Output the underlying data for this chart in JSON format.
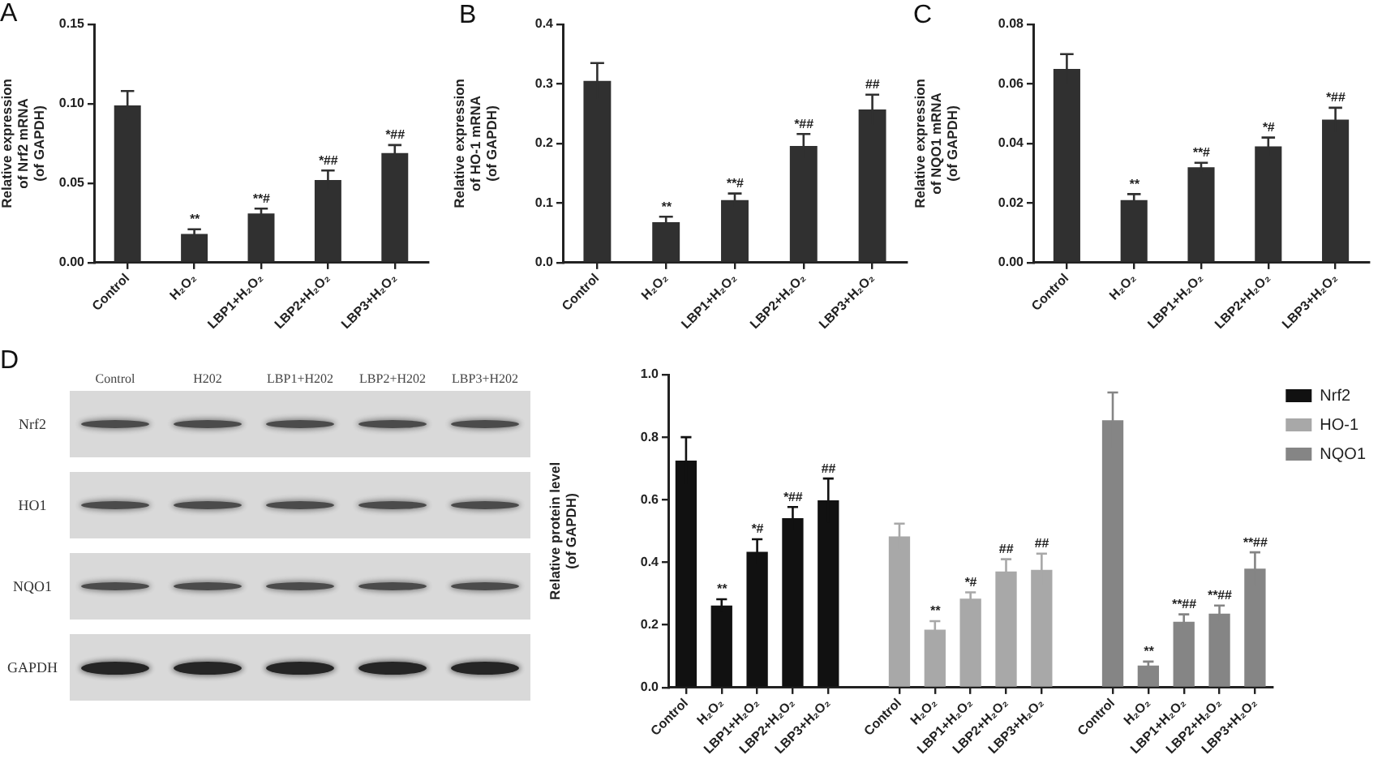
{
  "chart_data": [
    {
      "type": "bar",
      "title": "A",
      "ylabel": "Relative expression\nof Nrf2 mRNA\n(of GAPDH)",
      "categories": [
        "Control",
        "H₂O₂",
        "LBP1+H₂O₂",
        "LBP2+H₂O₂",
        "LBP3+H₂O₂"
      ],
      "values": [
        0.099,
        0.018,
        0.031,
        0.052,
        0.069
      ],
      "errors": [
        0.009,
        0.003,
        0.003,
        0.006,
        0.005
      ],
      "value_labels": [
        null,
        "**",
        "**#",
        "*##",
        "*##"
      ],
      "color": "#303030",
      "ylim": [
        0,
        0.15
      ],
      "yticks": [
        {
          "value": 0,
          "label": "0.00"
        },
        0.05,
        {
          "value": 0.1,
          "label": "0.10"
        },
        0.15
      ]
    },
    {
      "type": "bar",
      "title": "B",
      "ylabel": "Relative expression\nof HO-1 mRNA\n(of GAPDH)",
      "categories": [
        "Control",
        "H₂O₂",
        "LBP1+H₂O₂",
        "LBP2+H₂O₂",
        "LBP3+H₂O₂"
      ],
      "values": [
        0.305,
        0.068,
        0.105,
        0.196,
        0.257
      ],
      "errors": [
        0.03,
        0.009,
        0.011,
        0.02,
        0.025
      ],
      "value_labels": [
        null,
        "**",
        "**#",
        "*##",
        "##"
      ],
      "color": "#303030",
      "ylim": [
        0,
        0.4
      ],
      "yticks": [
        {
          "value": 0,
          "label": "0.0"
        },
        0.1,
        0.2,
        0.3,
        0.4
      ]
    },
    {
      "type": "bar",
      "title": "C",
      "ylabel": "Relative expression\nof NQO1 mRNA\n(of GAPDH)",
      "categories": [
        "Control",
        "H₂O₂",
        "LBP1+H₂O₂",
        "LBP2+H₂O₂",
        "LBP3+H₂O₂"
      ],
      "values": [
        0.065,
        0.021,
        0.032,
        0.039,
        0.048
      ],
      "errors": [
        0.005,
        0.002,
        0.0015,
        0.003,
        0.004
      ],
      "value_labels": [
        null,
        "**",
        "**#",
        "*#",
        "*##"
      ],
      "color": "#303030",
      "ylim": [
        0,
        0.08
      ],
      "yticks": [
        {
          "value": 0,
          "label": "0.00"
        },
        0.02,
        0.04,
        0.06,
        0.08
      ]
    },
    {
      "type": "other",
      "title": "D",
      "categories": [
        "Control",
        "H202",
        "LBP1+H202",
        "LBP2+H202",
        "LBP3+H202"
      ],
      "y_categories": [
        "Nrf2",
        "HO1",
        "NQO1",
        "GAPDH"
      ]
    },
    {
      "type": "bar",
      "ylabel": "Relative protein level\n(of GAPDH)",
      "categories": [
        "Control",
        "H₂O₂",
        "LBP1+H₂O₂",
        "LBP2+H₂O₂",
        "LBP3+H₂O₂",
        null,
        "Control",
        "H₂O₂",
        "LBP1+H₂O₂",
        "LBP2+H₂O₂",
        "LBP3+H₂O₂",
        null,
        "Control",
        "H₂O₂",
        "LBP1+H₂O₂",
        "LBP2+H₂O₂",
        "LBP3+H₂O₂"
      ],
      "series": [
        {
          "name": "Nrf2",
          "color": "#111111",
          "values": [
            0.725,
            0.262,
            0.434,
            0.541,
            0.598,
            null,
            null,
            null,
            null,
            null,
            null,
            null,
            null,
            null,
            null,
            null,
            null
          ],
          "errors": [
            0.075,
            0.02,
            0.04,
            0.036,
            0.07,
            null,
            null,
            null,
            null,
            null,
            null,
            null,
            null,
            null,
            null,
            null,
            null
          ],
          "value_labels": [
            null,
            "**",
            "*#",
            "*##",
            "##",
            null,
            null,
            null,
            null,
            null,
            null,
            null,
            null,
            null,
            null,
            null,
            null
          ]
        },
        {
          "name": "HO-1",
          "color": "#a8a8a8",
          "values": [
            null,
            null,
            null,
            null,
            null,
            null,
            0.483,
            0.185,
            0.284,
            0.371,
            0.376,
            null,
            null,
            null,
            null,
            null,
            null
          ],
          "errors": [
            null,
            null,
            null,
            null,
            null,
            null,
            0.041,
            0.027,
            0.02,
            0.039,
            0.052,
            null,
            null,
            null,
            null,
            null,
            null
          ],
          "value_labels": [
            null,
            null,
            null,
            null,
            null,
            null,
            null,
            "**",
            "*#",
            "##",
            "##",
            null,
            null,
            null,
            null,
            null,
            null
          ]
        },
        {
          "name": "NQO1",
          "color": "#858585",
          "values": [
            null,
            null,
            null,
            null,
            null,
            null,
            null,
            null,
            null,
            null,
            null,
            null,
            0.854,
            0.07,
            0.21,
            0.236,
            0.38
          ],
          "errors": [
            null,
            null,
            null,
            null,
            null,
            null,
            null,
            null,
            null,
            null,
            null,
            null,
            0.089,
            0.013,
            0.024,
            0.026,
            0.052
          ],
          "value_labels": [
            null,
            null,
            null,
            null,
            null,
            null,
            null,
            null,
            null,
            null,
            null,
            null,
            null,
            "**",
            "**##",
            "**##",
            "**##"
          ]
        }
      ],
      "ylim": [
        0,
        1
      ],
      "yticks": [
        {
          "value": 0,
          "label": "0.0"
        },
        0.2,
        0.4,
        0.6,
        0.8,
        {
          "value": 1,
          "label": "1.0"
        }
      ],
      "legend": "top right"
    }
  ]
}
